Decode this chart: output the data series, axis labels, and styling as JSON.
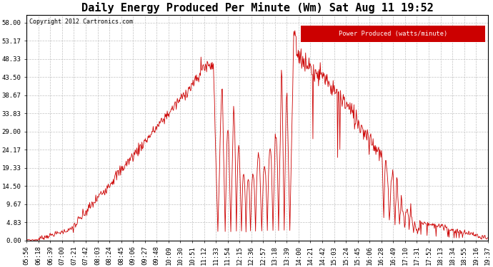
{
  "title": "Daily Energy Produced Per Minute (Wm) Sat Aug 11 19:52",
  "copyright": "Copyright 2012 Cartronics.com",
  "legend_label": "Power Produced (watts/minute)",
  "legend_bg": "#cc0000",
  "legend_fg": "#ffffff",
  "line_color": "#cc0000",
  "bg_color": "#ffffff",
  "grid_color": "#bbbbbb",
  "yticks": [
    0.0,
    4.83,
    9.67,
    14.5,
    19.33,
    24.17,
    29.0,
    33.83,
    38.67,
    43.5,
    48.33,
    53.17,
    58.0
  ],
  "xtick_labels": [
    "05:56",
    "06:18",
    "06:39",
    "07:00",
    "07:21",
    "07:42",
    "08:03",
    "08:24",
    "08:45",
    "09:06",
    "09:27",
    "09:48",
    "10:09",
    "10:30",
    "10:51",
    "11:12",
    "11:33",
    "11:54",
    "12:15",
    "12:36",
    "12:57",
    "13:18",
    "13:39",
    "14:00",
    "14:21",
    "14:42",
    "15:03",
    "15:24",
    "15:45",
    "16:06",
    "16:28",
    "16:49",
    "17:10",
    "17:31",
    "17:52",
    "18:13",
    "18:34",
    "18:55",
    "19:16",
    "19:37"
  ],
  "ymin": 0.0,
  "ymax": 60.0,
  "title_fontsize": 11,
  "axis_fontsize": 6.5
}
